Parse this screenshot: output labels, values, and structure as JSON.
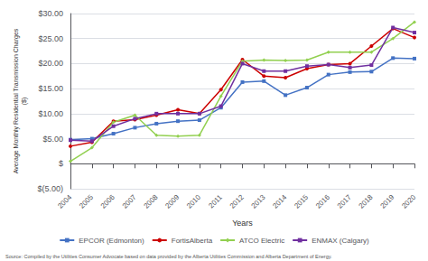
{
  "chart_data": {
    "type": "line",
    "xlabel": "Years",
    "ylabel": "Average Monthly Residential Transmission Charges\n($)",
    "annotation": "Source: Compiled by the Utilities Consumer Advocate based on data provided by the Alberta Utilities Commission and Alberta Department of Energy.",
    "categories": [
      "2004",
      "2005",
      "2006",
      "2007",
      "2008",
      "2009",
      "2010",
      "2011",
      "2012",
      "2013",
      "2014",
      "2015",
      "2016",
      "2017",
      "2018",
      "2019",
      "2020"
    ],
    "series": [
      {
        "name": "EPCOR (Edmonton)",
        "color": "#4472c4",
        "marker": "square",
        "values": [
          4.8,
          5.0,
          6.0,
          7.2,
          8.0,
          8.5,
          8.7,
          11.2,
          16.3,
          16.5,
          13.7,
          15.2,
          17.8,
          18.3,
          18.4,
          21.1,
          21.0
        ]
      },
      {
        "name": "FortisAlberta",
        "color": "#cc0000",
        "marker": "circle",
        "values": [
          3.5,
          4.3,
          8.5,
          8.8,
          9.7,
          10.8,
          10.0,
          14.8,
          20.8,
          17.5,
          17.2,
          19.0,
          19.8,
          20.0,
          23.5,
          27.0,
          25.2
        ]
      },
      {
        "name": "ATCO Electric",
        "color": "#92d050",
        "marker": "diamond",
        "values": [
          0.5,
          3.2,
          8.3,
          9.7,
          5.7,
          5.5,
          5.7,
          13.5,
          20.5,
          20.7,
          20.6,
          20.7,
          22.3,
          22.3,
          22.3,
          25.0,
          28.3
        ]
      },
      {
        "name": "ENMAX (Calgary)",
        "color": "#7030a0",
        "marker": "square",
        "values": [
          4.7,
          4.5,
          7.5,
          9.0,
          10.0,
          10.0,
          10.0,
          11.5,
          20.0,
          18.5,
          18.5,
          19.5,
          19.8,
          19.2,
          19.7,
          27.2,
          26.2
        ]
      }
    ],
    "ylim": [
      -5,
      30
    ],
    "yticks": [
      {
        "value": -5,
        "label": "$(5.00)"
      },
      {
        "value": 0,
        "label": "$"
      },
      {
        "value": 5,
        "label": "$5.00"
      },
      {
        "value": 10,
        "label": "$10.00"
      },
      {
        "value": 15,
        "label": "$15.00"
      },
      {
        "value": 20,
        "label": "$20.00"
      },
      {
        "value": 25,
        "label": "$25.00"
      },
      {
        "value": 30,
        "label": "$30.00"
      }
    ],
    "grid": true,
    "legend": "bottom"
  }
}
